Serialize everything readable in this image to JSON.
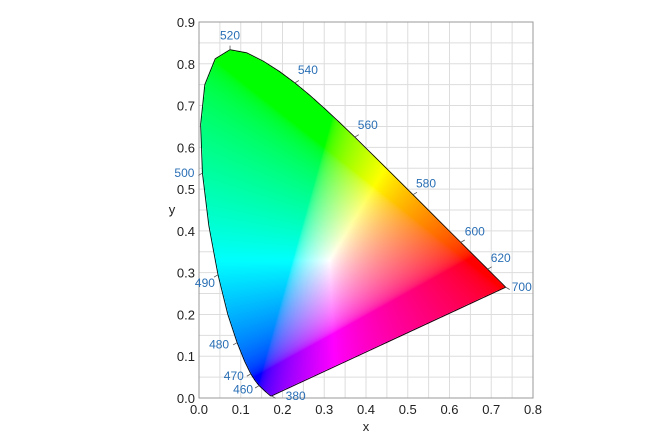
{
  "chart_data": {
    "type": "scatter",
    "xlabel": "x",
    "ylabel": "y",
    "xlim": [
      0,
      0.8
    ],
    "ylim": [
      0,
      0.9
    ],
    "grid": true,
    "grid_step": 0.05,
    "x_ticks": [
      "0.0",
      "0.1",
      "0.2",
      "0.3",
      "0.4",
      "0.5",
      "0.6",
      "0.7",
      "0.8"
    ],
    "y_ticks": [
      "0.0",
      "0.1",
      "0.2",
      "0.3",
      "0.4",
      "0.5",
      "0.6",
      "0.7",
      "0.8",
      "0.9"
    ],
    "colors": {
      "grid": "#dddddd",
      "label": "#2a6fb5",
      "outline": "#000000"
    },
    "wavelength_labels": [
      {
        "nm": "380",
        "x": 0.1741,
        "y": 0.005
      },
      {
        "nm": "460",
        "x": 0.144,
        "y": 0.0297
      },
      {
        "nm": "470",
        "x": 0.1241,
        "y": 0.0578
      },
      {
        "nm": "480",
        "x": 0.0913,
        "y": 0.1327
      },
      {
        "nm": "490",
        "x": 0.0454,
        "y": 0.295
      },
      {
        "nm": "500",
        "x": 0.0082,
        "y": 0.5384
      },
      {
        "nm": "520",
        "x": 0.0743,
        "y": 0.8338
      },
      {
        "nm": "540",
        "x": 0.2296,
        "y": 0.7543
      },
      {
        "nm": "560",
        "x": 0.3731,
        "y": 0.6245
      },
      {
        "nm": "580",
        "x": 0.5125,
        "y": 0.4866
      },
      {
        "nm": "600",
        "x": 0.627,
        "y": 0.3725
      },
      {
        "nm": "620",
        "x": 0.6915,
        "y": 0.3083
      },
      {
        "nm": "700",
        "x": 0.7347,
        "y": 0.2653
      }
    ],
    "spectral_locus": [
      [
        0.1741,
        0.005
      ],
      [
        0.1733,
        0.0048
      ],
      [
        0.1714,
        0.0051
      ],
      [
        0.1689,
        0.0069
      ],
      [
        0.1644,
        0.0109
      ],
      [
        0.1566,
        0.0177
      ],
      [
        0.144,
        0.0297
      ],
      [
        0.1355,
        0.0399
      ],
      [
        0.1241,
        0.0578
      ],
      [
        0.1096,
        0.0868
      ],
      [
        0.0913,
        0.1327
      ],
      [
        0.0687,
        0.2007
      ],
      [
        0.0454,
        0.295
      ],
      [
        0.0235,
        0.4127
      ],
      [
        0.0082,
        0.5384
      ],
      [
        0.0039,
        0.6548
      ],
      [
        0.0139,
        0.7502
      ],
      [
        0.0389,
        0.812
      ],
      [
        0.0743,
        0.8338
      ],
      [
        0.1142,
        0.8262
      ],
      [
        0.1547,
        0.8059
      ],
      [
        0.1929,
        0.7816
      ],
      [
        0.2296,
        0.7543
      ],
      [
        0.2658,
        0.7243
      ],
      [
        0.3016,
        0.6923
      ],
      [
        0.3373,
        0.6589
      ],
      [
        0.3731,
        0.6245
      ],
      [
        0.4087,
        0.5896
      ],
      [
        0.4441,
        0.5547
      ],
      [
        0.4788,
        0.5202
      ],
      [
        0.5125,
        0.4866
      ],
      [
        0.5448,
        0.4544
      ],
      [
        0.5752,
        0.4242
      ],
      [
        0.6029,
        0.3965
      ],
      [
        0.627,
        0.3725
      ],
      [
        0.6482,
        0.3514
      ],
      [
        0.6658,
        0.334
      ],
      [
        0.6915,
        0.3083
      ],
      [
        0.7079,
        0.292
      ],
      [
        0.719,
        0.2809
      ],
      [
        0.726,
        0.274
      ],
      [
        0.7347,
        0.2653
      ]
    ]
  }
}
